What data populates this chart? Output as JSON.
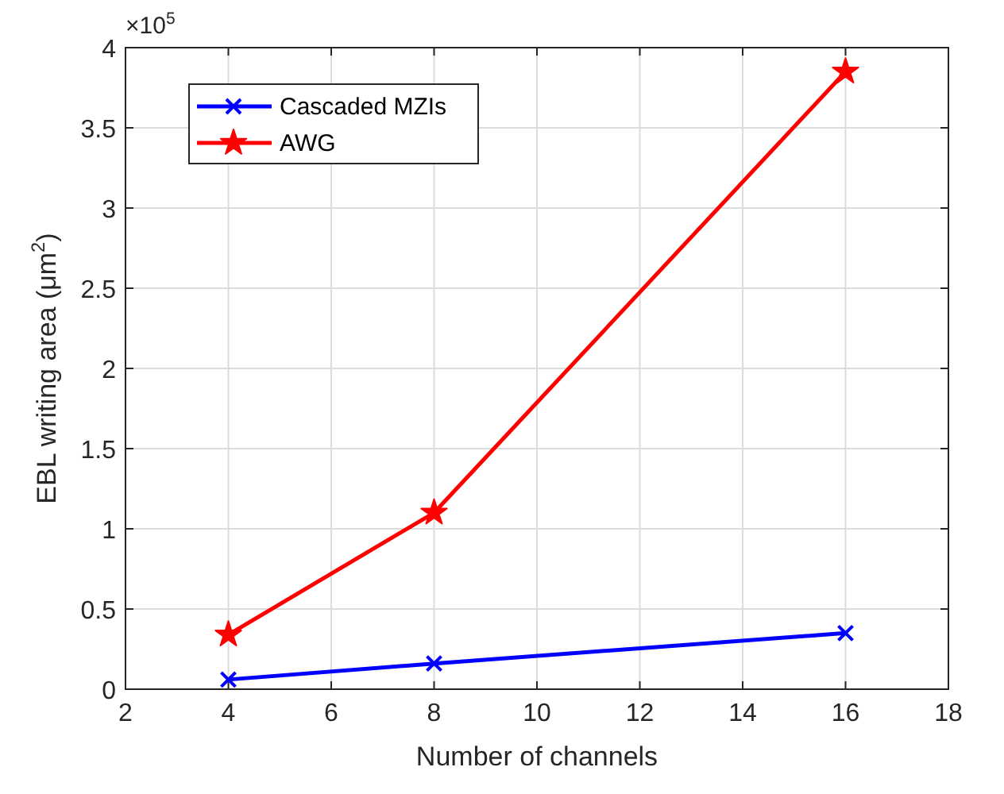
{
  "chart_data": {
    "type": "line",
    "xlabel": "Number of channels",
    "ylabel": "EBL writing area (μm$^{2}$)",
    "annotations": [
      "×10$^{5}$"
    ],
    "x": [
      4,
      8,
      16
    ],
    "series": [
      {
        "name": "Cascaded MZIs",
        "color": "#0000ff",
        "marker": "cross",
        "values": [
          0.06,
          0.16,
          0.35
        ]
      },
      {
        "name": "AWG",
        "color": "#ff0000",
        "marker": "star",
        "values": [
          0.34,
          1.1,
          3.85
        ]
      }
    ],
    "xlim": [
      2,
      18
    ],
    "xticks": [
      2,
      4,
      6,
      8,
      10,
      12,
      14,
      16,
      18
    ],
    "ylim": [
      0,
      4
    ],
    "yticks": [
      0,
      0.5,
      1,
      1.5,
      2,
      2.5,
      3,
      3.5,
      4
    ],
    "grid": true,
    "legend": "top left",
    "line_style": "solid"
  }
}
